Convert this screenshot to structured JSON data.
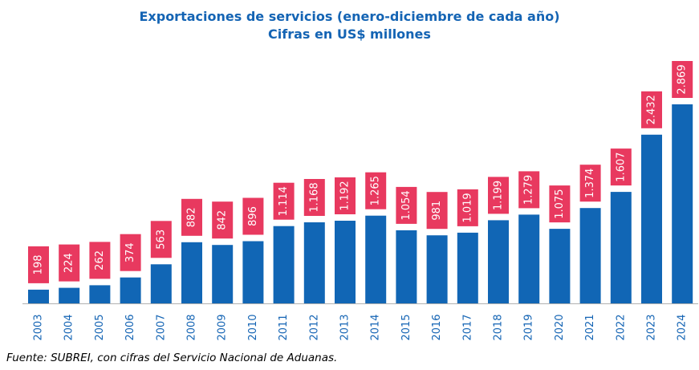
{
  "chart_data": {
    "type": "bar",
    "title": "Exportaciones de servicios (enero-diciembre de cada año)",
    "subtitle": "Cifras en US$ millones",
    "categories": [
      "2003",
      "2004",
      "2005",
      "2006",
      "2007",
      "2008",
      "2009",
      "2010",
      "2011",
      "2012",
      "2013",
      "2014",
      "2015",
      "2016",
      "2017",
      "2018",
      "2019",
      "2020",
      "2021",
      "2022",
      "2023",
      "2024"
    ],
    "values": [
      198,
      224,
      262,
      374,
      563,
      882,
      842,
      896,
      1114,
      1168,
      1192,
      1265,
      1054,
      981,
      1019,
      1199,
      1279,
      1075,
      1374,
      1607,
      2432,
      2869
    ],
    "data_labels": [
      "198",
      "224",
      "262",
      "374",
      "563",
      "882",
      "842",
      "896",
      "1.114",
      "1.168",
      "1.192",
      "1.265",
      "1.054",
      "981",
      "1.019",
      "1.199",
      "1.279",
      "1.075",
      "1.374",
      "1.607",
      "2.432",
      "2.869"
    ],
    "xlabel": "",
    "ylabel": "",
    "ylim": [
      0,
      2869
    ],
    "grid": false,
    "legend": "none",
    "colors": {
      "bar": "#1166b5",
      "label_bg": "#e8395f",
      "label_text": "#ffffff",
      "axis_text": "#1464b4",
      "title": "#1464b4"
    }
  },
  "source_note": "Fuente: SUBREI, con cifras del Servicio Nacional de Aduanas."
}
